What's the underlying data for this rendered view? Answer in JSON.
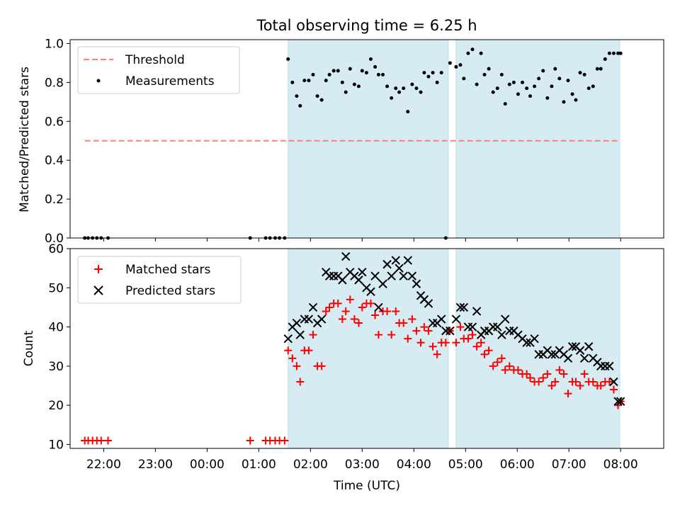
{
  "title": "Total observing time = 6.25 h",
  "xlabel": "Time (UTC)",
  "x_ticks": [
    "22:00",
    "23:00",
    "00:00",
    "01:00",
    "02:00",
    "03:00",
    "04:00",
    "05:00",
    "06:00",
    "07:00",
    "08:00"
  ],
  "colors": {
    "threshold": "#ff7f7f",
    "measurements": "#000000",
    "matched": "#ff0000",
    "predicted": "#000000",
    "band": "#add8e6"
  },
  "chart_data": [
    {
      "type": "scatter",
      "ylabel": "Matched/Predicted stars",
      "xlim": [
        "21:21",
        "08:50"
      ],
      "ylim": [
        0,
        1.02
      ],
      "y_ticks": [
        "0.0",
        "0.2",
        "0.4",
        "0.6",
        "0.8",
        "1.0"
      ],
      "shaded_intervals": [
        [
          "01:34",
          "04:40"
        ],
        [
          "04:49",
          "07:59"
        ]
      ],
      "legend": {
        "placement": "top-left",
        "entries": [
          "Threshold",
          "Measurements"
        ]
      },
      "threshold": {
        "name": "Threshold",
        "y": 0.5,
        "x_range": [
          "21:38",
          "07:59"
        ]
      },
      "series": [
        {
          "name": "Measurements",
          "x": [
            "21:38",
            "21:42",
            "21:47",
            "21:52",
            "21:57",
            "22:05",
            "00:50",
            "01:08",
            "01:13",
            "01:19",
            "01:24",
            "01:30",
            "01:34",
            "01:39",
            "01:44",
            "01:48",
            "01:53",
            "01:58",
            "02:03",
            "02:08",
            "02:13",
            "02:18",
            "02:22",
            "02:27",
            "02:32",
            "02:37",
            "02:41",
            "02:46",
            "02:51",
            "02:56",
            "03:00",
            "03:05",
            "03:10",
            "03:15",
            "03:19",
            "03:24",
            "03:29",
            "03:34",
            "03:39",
            "03:43",
            "03:48",
            "03:53",
            "03:58",
            "04:03",
            "04:08",
            "04:12",
            "04:17",
            "04:22",
            "04:27",
            "04:32",
            "04:37",
            "04:42",
            "04:49",
            "04:54",
            "04:58",
            "05:03",
            "05:08",
            "05:13",
            "05:18",
            "05:22",
            "05:27",
            "05:32",
            "05:37",
            "05:42",
            "05:46",
            "05:51",
            "05:56",
            "06:01",
            "06:06",
            "06:11",
            "06:15",
            "06:20",
            "06:25",
            "06:30",
            "06:35",
            "06:40",
            "06:44",
            "06:49",
            "06:54",
            "06:59",
            "07:04",
            "07:08",
            "07:13",
            "07:18",
            "07:23",
            "07:28",
            "07:33",
            "07:37",
            "07:42",
            "07:47",
            "07:52",
            "07:57",
            "08:00"
          ],
          "y": [
            0,
            0,
            0,
            0,
            0,
            0,
            0,
            0,
            0,
            0,
            0,
            0,
            0.92,
            0.8,
            0.73,
            0.68,
            0.81,
            0.81,
            0.84,
            0.73,
            0.71,
            0.81,
            0.84,
            0.86,
            0.86,
            0.8,
            0.75,
            0.87,
            0.79,
            0.78,
            0.86,
            0.85,
            0.92,
            0.88,
            0.84,
            0.84,
            0.78,
            0.72,
            0.77,
            0.75,
            0.77,
            0.65,
            0.79,
            0.77,
            0.75,
            0.85,
            0.83,
            0.85,
            0.8,
            0.85,
            0,
            0.9,
            0.88,
            0.89,
            0.82,
            0.95,
            0.97,
            0.79,
            0.95,
            0.84,
            0.87,
            0.75,
            0.77,
            0.84,
            0.69,
            0.79,
            0.8,
            0.74,
            0.8,
            0.77,
            0.73,
            0.78,
            0.82,
            0.86,
            0.72,
            0.78,
            0.87,
            0.82,
            0.7,
            0.81,
            0.74,
            0.71,
            0.85,
            0.84,
            0.77,
            0.78,
            0.87,
            0.87,
            0.92,
            0.95,
            0.95,
            0.95,
            0.95
          ]
        }
      ]
    },
    {
      "type": "scatter",
      "ylabel": "Count",
      "xlim": [
        "21:21",
        "08:50"
      ],
      "ylim": [
        9,
        60
      ],
      "y_ticks": [
        "10",
        "20",
        "30",
        "40",
        "50",
        "60"
      ],
      "shaded_intervals": [
        [
          "01:34",
          "04:40"
        ],
        [
          "04:49",
          "07:59"
        ]
      ],
      "legend": {
        "placement": "top-left",
        "entries": [
          "Matched stars",
          "Predicted stars"
        ]
      },
      "series": [
        {
          "name": "Matched stars",
          "marker": "+",
          "x": [
            "21:38",
            "21:42",
            "21:47",
            "21:52",
            "21:57",
            "22:05",
            "00:50",
            "01:08",
            "01:13",
            "01:19",
            "01:24",
            "01:30",
            "01:34",
            "01:39",
            "01:44",
            "01:48",
            "01:53",
            "01:58",
            "02:03",
            "02:08",
            "02:13",
            "02:18",
            "02:22",
            "02:27",
            "02:32",
            "02:37",
            "02:41",
            "02:46",
            "02:51",
            "02:56",
            "03:00",
            "03:05",
            "03:10",
            "03:15",
            "03:19",
            "03:24",
            "03:29",
            "03:34",
            "03:39",
            "03:43",
            "03:48",
            "03:53",
            "03:58",
            "04:03",
            "04:08",
            "04:12",
            "04:17",
            "04:22",
            "04:27",
            "04:32",
            "04:37",
            "04:42",
            "04:49",
            "04:54",
            "04:58",
            "05:03",
            "05:08",
            "05:13",
            "05:18",
            "05:22",
            "05:27",
            "05:32",
            "05:37",
            "05:42",
            "05:46",
            "05:51",
            "05:56",
            "06:01",
            "06:06",
            "06:11",
            "06:15",
            "06:20",
            "06:25",
            "06:30",
            "06:35",
            "06:40",
            "06:44",
            "06:49",
            "06:54",
            "06:59",
            "07:04",
            "07:08",
            "07:13",
            "07:18",
            "07:23",
            "07:28",
            "07:33",
            "07:37",
            "07:42",
            "07:47",
            "07:52",
            "07:57",
            "08:00"
          ],
          "y": [
            11,
            11,
            11,
            11,
            11,
            11,
            11,
            11,
            11,
            11,
            11,
            11,
            34,
            32,
            30,
            26,
            34,
            34,
            38,
            30,
            30,
            44,
            45,
            46,
            46,
            42,
            44,
            47,
            42,
            41,
            45,
            46,
            46,
            43,
            38,
            44,
            44,
            38,
            44,
            41,
            41,
            37,
            42,
            39,
            36,
            40,
            39,
            35,
            33,
            36,
            36,
            39,
            36,
            40,
            37,
            37,
            38,
            35,
            36,
            33,
            34,
            30,
            31,
            32,
            29,
            30,
            29,
            29,
            28,
            28,
            27,
            26,
            26,
            27,
            28,
            25,
            26,
            29,
            28,
            23,
            26,
            26,
            25,
            28,
            26,
            26,
            25,
            25,
            26,
            26,
            24,
            20,
            21
          ]
        },
        {
          "name": "Predicted stars",
          "marker": "x",
          "x": [
            "01:34",
            "01:39",
            "01:44",
            "01:48",
            "01:53",
            "01:58",
            "02:03",
            "02:08",
            "02:13",
            "02:18",
            "02:22",
            "02:27",
            "02:32",
            "02:37",
            "02:41",
            "02:46",
            "02:51",
            "02:56",
            "03:00",
            "03:05",
            "03:10",
            "03:15",
            "03:19",
            "03:24",
            "03:29",
            "03:34",
            "03:39",
            "03:43",
            "03:48",
            "03:53",
            "03:58",
            "04:03",
            "04:08",
            "04:12",
            "04:17",
            "04:22",
            "04:27",
            "04:32",
            "04:37",
            "04:42",
            "04:49",
            "04:54",
            "04:58",
            "05:03",
            "05:08",
            "05:13",
            "05:18",
            "05:22",
            "05:27",
            "05:32",
            "05:37",
            "05:42",
            "05:46",
            "05:51",
            "05:56",
            "06:01",
            "06:06",
            "06:11",
            "06:15",
            "06:20",
            "06:25",
            "06:30",
            "06:35",
            "06:40",
            "06:44",
            "06:49",
            "06:54",
            "06:59",
            "07:04",
            "07:08",
            "07:13",
            "07:18",
            "07:23",
            "07:28",
            "07:33",
            "07:37",
            "07:42",
            "07:47",
            "07:52",
            "07:57",
            "08:00"
          ],
          "y": [
            37,
            40,
            41,
            38,
            42,
            42,
            45,
            41,
            42,
            54,
            53,
            53,
            53,
            52,
            58,
            54,
            53,
            52,
            54,
            50,
            49,
            53,
            45,
            51,
            56,
            53,
            57,
            55,
            53,
            57,
            53,
            51,
            48,
            47,
            46,
            41,
            41,
            42,
            39,
            39,
            42,
            45,
            45,
            40,
            40,
            44,
            38,
            39,
            39,
            40,
            40,
            38,
            42,
            39,
            39,
            38,
            37,
            36,
            36,
            37,
            33,
            33,
            34,
            33,
            33,
            34,
            33,
            32,
            35,
            35,
            34,
            32,
            35,
            32,
            31,
            30,
            30,
            30,
            26,
            21,
            21
          ]
        }
      ]
    }
  ]
}
